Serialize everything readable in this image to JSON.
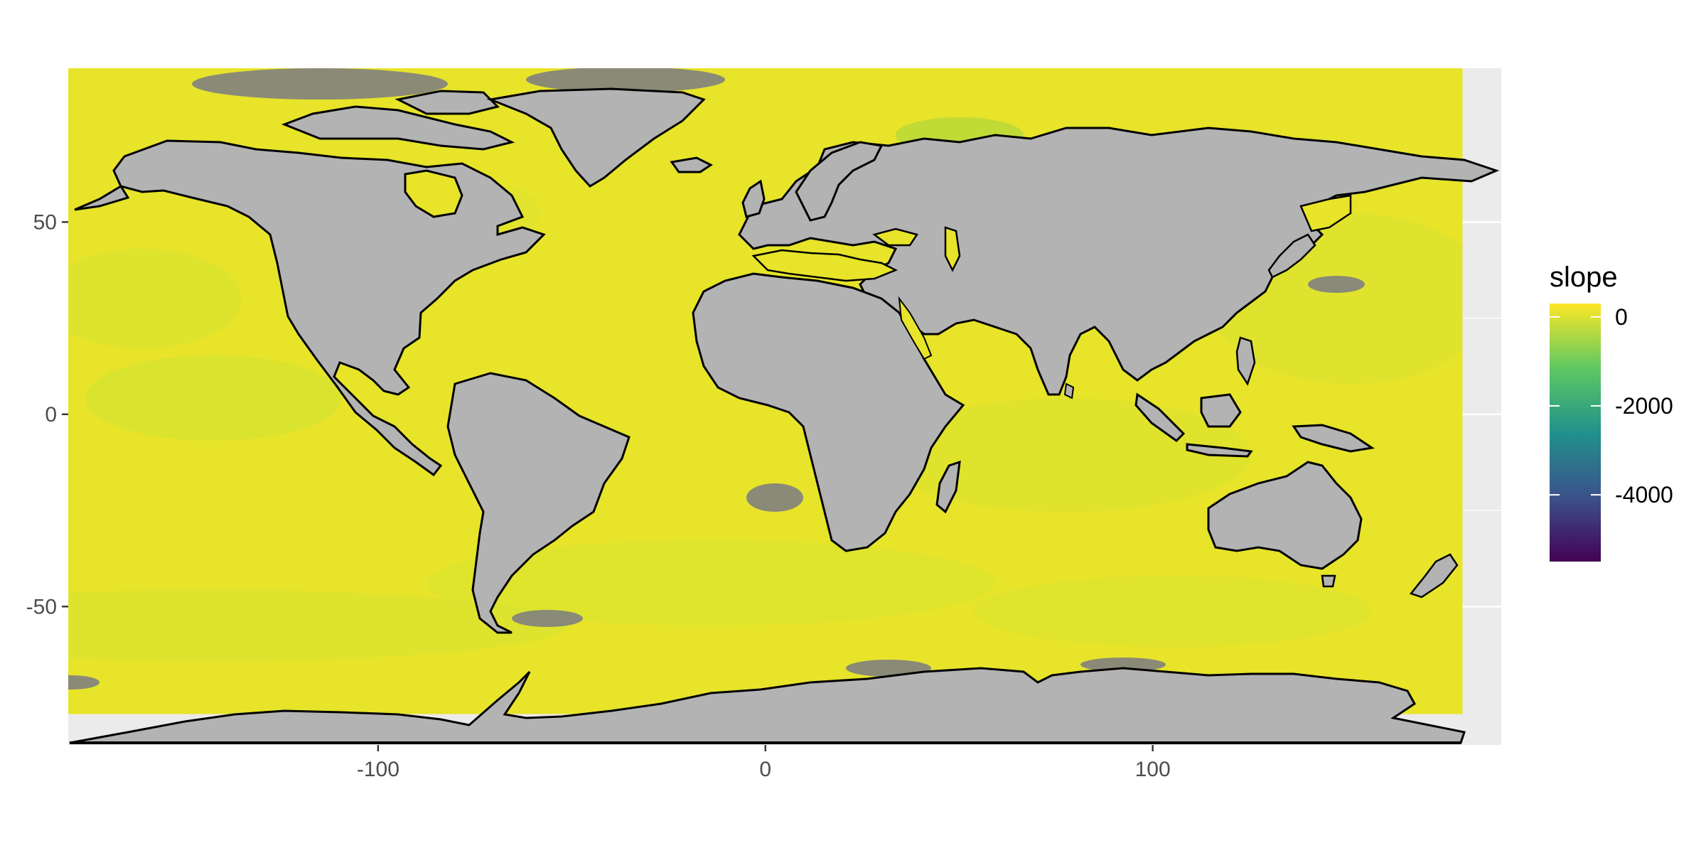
{
  "chart_data": {
    "type": "heatmap",
    "subtype": "world raster map",
    "title": "",
    "xlabel": "",
    "ylabel": "",
    "xlim": [
      -180,
      190
    ],
    "ylim": [
      -86,
      90
    ],
    "x_ticks": [
      {
        "value": -100,
        "label": "-100"
      },
      {
        "value": 0,
        "label": "0"
      },
      {
        "value": 100,
        "label": "100"
      }
    ],
    "y_ticks": [
      {
        "value": 50,
        "label": "50"
      },
      {
        "value": 0,
        "label": "0"
      },
      {
        "value": -50,
        "label": "-50"
      }
    ],
    "panel_background": "#ebebeb",
    "grid": true,
    "raster_extent": {
      "lon": [
        -180,
        180
      ],
      "lat": [
        -78,
        90
      ]
    },
    "raster_fill_dominant": "#e7e42a",
    "land_fill": "#b3b3b3",
    "border_color": "#000000",
    "missing_color": "#7f7f7f",
    "legend": {
      "title": "slope",
      "position": "right",
      "palette": "viridis",
      "colors": [
        "#440154",
        "#3b528b",
        "#21918c",
        "#5ec962",
        "#fde725"
      ],
      "min": -5500,
      "max": 300,
      "breaks": [
        {
          "value": 0,
          "label": "0"
        },
        {
          "value": -2000,
          "label": "-2000"
        },
        {
          "value": -4000,
          "label": "-4000"
        }
      ]
    }
  }
}
